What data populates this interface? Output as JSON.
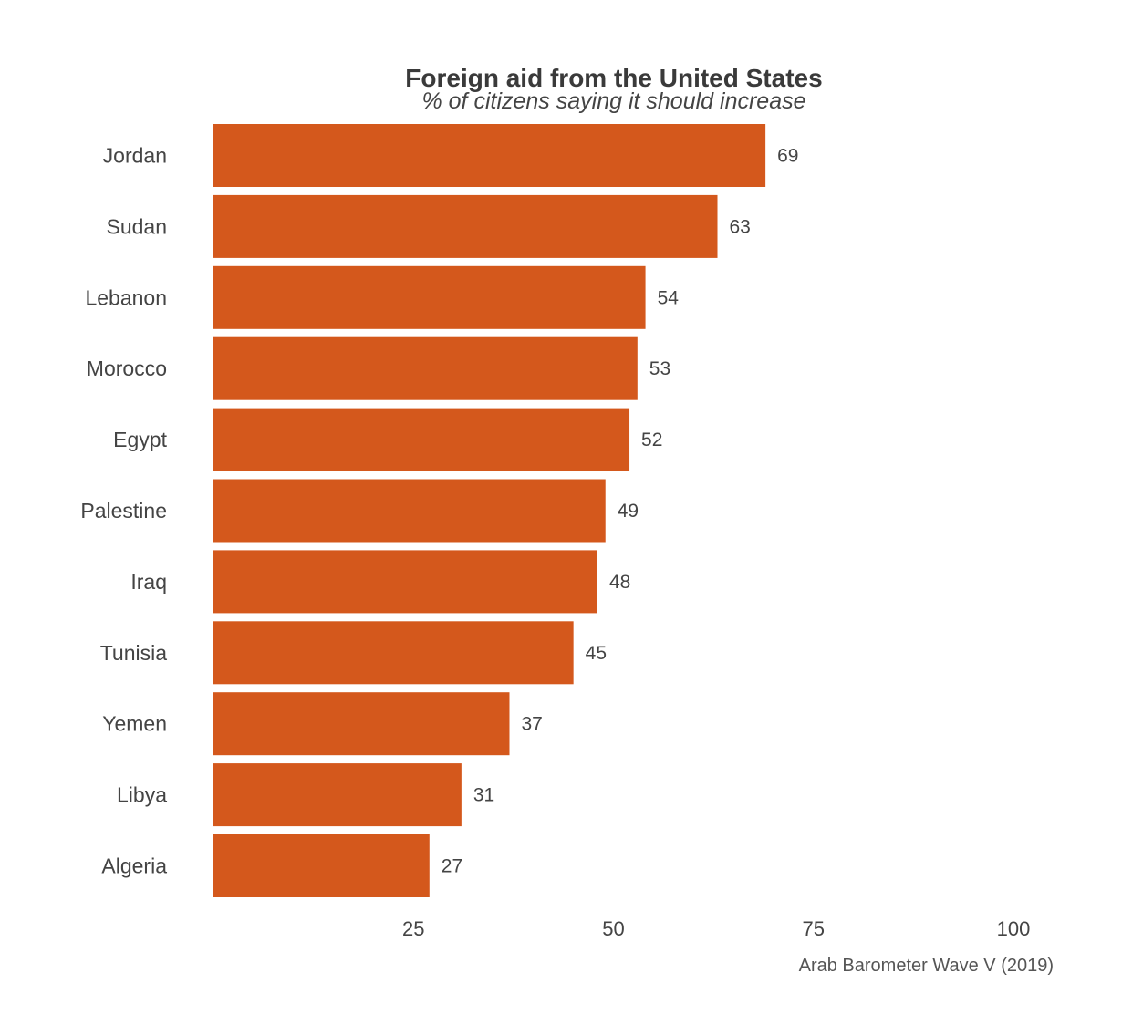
{
  "chart_data": {
    "type": "bar",
    "orientation": "horizontal",
    "title": "Foreign aid from the United States",
    "subtitle": "% of citizens saying it should increase",
    "caption": "Arab Barometer Wave V (2019)",
    "categories": [
      "Jordan",
      "Sudan",
      "Lebanon",
      "Morocco",
      "Egypt",
      "Palestine",
      "Iraq",
      "Tunisia",
      "Yemen",
      "Libya",
      "Algeria"
    ],
    "values": [
      69,
      63,
      54,
      53,
      52,
      49,
      48,
      45,
      37,
      31,
      27
    ],
    "xlim": [
      0,
      100
    ],
    "xticks": [
      25,
      50,
      75,
      100
    ],
    "grid": false,
    "legend": "none",
    "bar_color": "#d4581c"
  }
}
